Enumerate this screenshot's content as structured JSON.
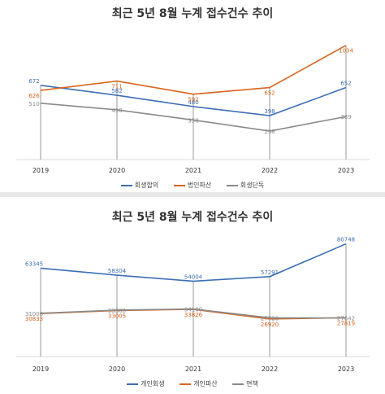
{
  "chart_data": [
    {
      "type": "line",
      "title": "최근 5년 8월 누계 접수건수 추이",
      "categories": [
        "2019",
        "2020",
        "2021",
        "2022",
        "2023"
      ],
      "ylim": [
        0,
        1150
      ],
      "series": [
        {
          "name": "회생합의",
          "color": "#3b6fb6",
          "values": [
            672,
            582,
            480,
            398,
            652
          ]
        },
        {
          "name": "법인파산",
          "color": "#d8661e",
          "values": [
            626,
            711,
            592,
            652,
            1034
          ]
        },
        {
          "name": "회생단독",
          "color": "#8a8a8a",
          "values": [
            510,
            450,
            358,
            258,
            389
          ]
        }
      ]
    },
    {
      "type": "line",
      "title": "최근 5년 8월 누계 접수건수 추이",
      "categories": [
        "2019",
        "2020",
        "2021",
        "2022",
        "2023"
      ],
      "ylim": [
        0,
        91000
      ],
      "series": [
        {
          "name": "개인회생",
          "color": "#3b6fb6",
          "values": [
            63345,
            58304,
            54004,
            57291,
            80748
          ]
        },
        {
          "name": "개인파산",
          "color": "#d8661e",
          "values": [
            30833,
            33005,
            33826,
            26920,
            27819
          ]
        },
        {
          "name": "면책",
          "color": "#8a8a8a",
          "values": [
            31000,
            33300,
            34100,
            27720,
            27642
          ]
        }
      ]
    }
  ]
}
